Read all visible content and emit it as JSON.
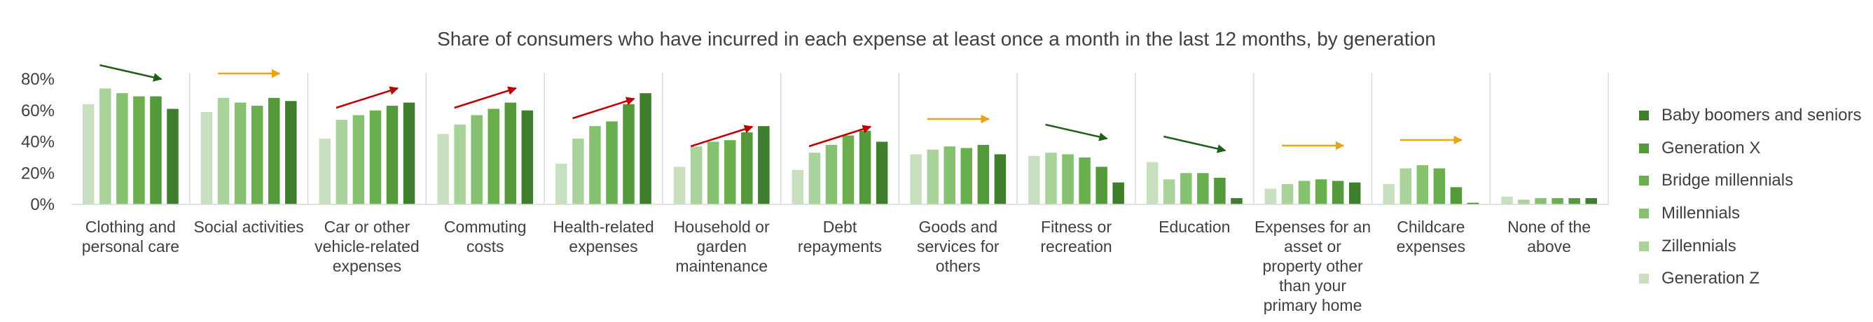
{
  "chart_data": {
    "type": "bar",
    "title": "Share of consumers who have incurred in each expense at least once a month in the last 12 months, by generation",
    "xlabel": "",
    "ylabel": "",
    "ylim": [
      0,
      80
    ],
    "yticks": [
      "0%",
      "20%",
      "40%",
      "60%",
      "80%"
    ],
    "grid": false,
    "legend_position": "right",
    "categories": [
      [
        "Clothing and",
        "personal care"
      ],
      [
        "Social activities"
      ],
      [
        "Car or other",
        "vehicle-related",
        "expenses"
      ],
      [
        "Commuting",
        "costs"
      ],
      [
        "Health-related",
        "expenses"
      ],
      [
        "Household or",
        "garden",
        "maintenance"
      ],
      [
        "Debt",
        "repayments"
      ],
      [
        "Goods and",
        "services for",
        "others"
      ],
      [
        "Fitness or",
        "recreation"
      ],
      [
        "Education"
      ],
      [
        "Expenses for an",
        "asset or",
        "property other",
        "than your",
        "primary home"
      ],
      [
        "Childcare",
        "expenses"
      ],
      [
        "None of the",
        "above"
      ]
    ],
    "series": [
      {
        "name": "Generation Z",
        "color": "#c9e0c0",
        "values": [
          64,
          59,
          42,
          45,
          26,
          24,
          22,
          32,
          31,
          27,
          10,
          13,
          5
        ]
      },
      {
        "name": "Zillennials",
        "color": "#a9d39b",
        "values": [
          74,
          68,
          54,
          51,
          42,
          37,
          33,
          35,
          33,
          16,
          13,
          23,
          3
        ]
      },
      {
        "name": "Millennials",
        "color": "#86c170",
        "values": [
          71,
          65,
          57,
          57,
          50,
          40,
          38,
          37,
          32,
          20,
          15,
          25,
          4
        ]
      },
      {
        "name": "Bridge millennials",
        "color": "#6aaf4d",
        "values": [
          69,
          63,
          60,
          61,
          53,
          41,
          44,
          36,
          30,
          20,
          16,
          23,
          4
        ]
      },
      {
        "name": "Generation X",
        "color": "#549a3b",
        "values": [
          69,
          68,
          63,
          65,
          64,
          46,
          47,
          38,
          24,
          17,
          15,
          11,
          4
        ]
      },
      {
        "name": "Baby boomers and seniors",
        "color": "#3f7e2d",
        "values": [
          61,
          66,
          65,
          60,
          71,
          50,
          40,
          32,
          14,
          4,
          14,
          1,
          4
        ]
      }
    ],
    "trend_arrows": [
      {
        "category": "Clothing and personal care",
        "direction": "down",
        "color": "#1f5f17"
      },
      {
        "category": "Social activities",
        "direction": "flat",
        "color": "#e8a317"
      },
      {
        "category": "Car or other vehicle-related expenses",
        "direction": "up",
        "color": "#c00000"
      },
      {
        "category": "Commuting costs",
        "direction": "up",
        "color": "#c00000"
      },
      {
        "category": "Health-related expenses",
        "direction": "up",
        "color": "#c00000"
      },
      {
        "category": "Household or garden maintenance",
        "direction": "up",
        "color": "#c00000"
      },
      {
        "category": "Debt repayments",
        "direction": "up",
        "color": "#c00000"
      },
      {
        "category": "Goods and services for others",
        "direction": "flat",
        "color": "#e8a317"
      },
      {
        "category": "Fitness or recreation",
        "direction": "down",
        "color": "#1f5f17"
      },
      {
        "category": "Education",
        "direction": "down",
        "color": "#1f5f17"
      },
      {
        "category": "Expenses for an asset or property other than your primary home",
        "direction": "flat",
        "color": "#e8a317"
      },
      {
        "category": "Childcare expenses",
        "direction": "flat",
        "color": "#e8a317"
      }
    ],
    "legend_order": [
      "Baby boomers and seniors",
      "Generation X",
      "Bridge millennials",
      "Millennials",
      "Zillennials",
      "Generation Z"
    ]
  }
}
